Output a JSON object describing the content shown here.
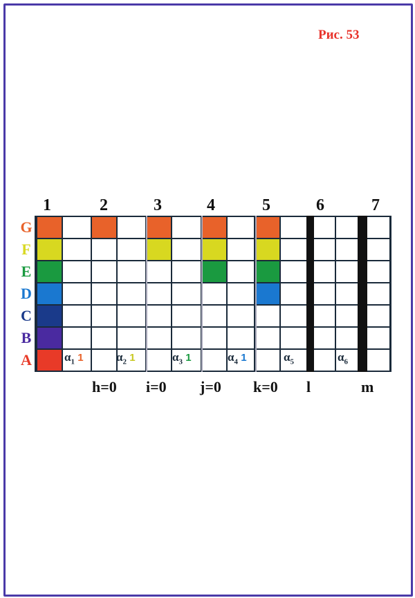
{
  "figure_label": "Рис. 53",
  "column_numbers": [
    "1",
    "2",
    "3",
    "4",
    "5",
    "6",
    "7"
  ],
  "rows": [
    {
      "label": "G",
      "color": "#e8622a"
    },
    {
      "label": "F",
      "color": "#d8d820"
    },
    {
      "label": "E",
      "color": "#1a9a40"
    },
    {
      "label": "D",
      "color": "#1a78d0"
    },
    {
      "label": "C",
      "color": "#1a3a8a"
    },
    {
      "label": "B",
      "color": "#4a2aa0"
    },
    {
      "label": "A",
      "color": "#e83a28"
    }
  ],
  "filled": {
    "c0": [
      "G",
      "F",
      "E",
      "D",
      "C",
      "B",
      "A"
    ],
    "c2": [
      "G"
    ],
    "c4": [
      "G",
      "F"
    ],
    "c6": [
      "G",
      "F",
      "E"
    ],
    "c8": [
      "G",
      "F",
      "E",
      "D"
    ]
  },
  "alphas": [
    {
      "sym": "α",
      "sub": "1",
      "val": "1",
      "val_color": "#e8622a"
    },
    {
      "sym": "α",
      "sub": "2",
      "val": "1",
      "val_color": "#c8c820"
    },
    {
      "sym": "α",
      "sub": "3",
      "val": "1",
      "val_color": "#1a9a40"
    },
    {
      "sym": "α",
      "sub": "4",
      "val": "1",
      "val_color": "#1a78d0"
    },
    {
      "sym": "α",
      "sub": "5",
      "val": "",
      "val_color": "#000"
    },
    {
      "sym": "α",
      "sub": "6",
      "val": "",
      "val_color": "#000"
    }
  ],
  "bottom_labels": [
    "h=0",
    "i=0",
    "j=0",
    "k=0",
    "l",
    "m"
  ]
}
